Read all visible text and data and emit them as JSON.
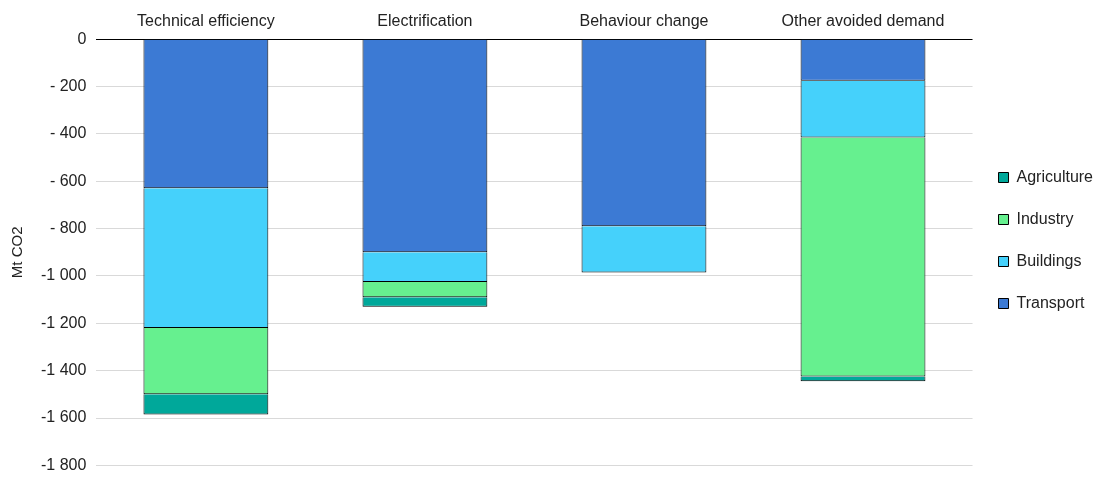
{
  "chart_data": {
    "type": "bar",
    "stacked": true,
    "ylabel": "Mt CO2",
    "categories": [
      "Technical efficiency",
      "Electrification",
      "Behaviour change",
      "Other avoided demand"
    ],
    "series": [
      {
        "name": "Transport",
        "color": "#3c7ad4",
        "values": [
          -630,
          -900,
          -790,
          -175
        ]
      },
      {
        "name": "Buildings",
        "color": "#45d1fb",
        "values": [
          -590,
          -125,
          -195,
          -240
        ]
      },
      {
        "name": "Industry",
        "color": "#66f08f",
        "values": [
          -280,
          -65,
          null,
          -1010
        ]
      },
      {
        "name": "Agriculture",
        "color": "#00a89a",
        "values": [
          -85,
          -40,
          null,
          -20
        ]
      }
    ],
    "ylim": [
      -1800,
      0
    ],
    "yticks": [
      {
        "value": 0,
        "label": "0"
      },
      {
        "value": -200,
        "label": "- 200"
      },
      {
        "value": -400,
        "label": "- 400"
      },
      {
        "value": -600,
        "label": "- 600"
      },
      {
        "value": -800,
        "label": "- 800"
      },
      {
        "value": -1000,
        "label": "-1 000"
      },
      {
        "value": -1200,
        "label": "-1 200"
      },
      {
        "value": -1400,
        "label": "-1 400"
      },
      {
        "value": -1600,
        "label": "-1 600"
      },
      {
        "value": -1800,
        "label": "-1 800"
      }
    ],
    "grid": "y",
    "legend": "right"
  }
}
